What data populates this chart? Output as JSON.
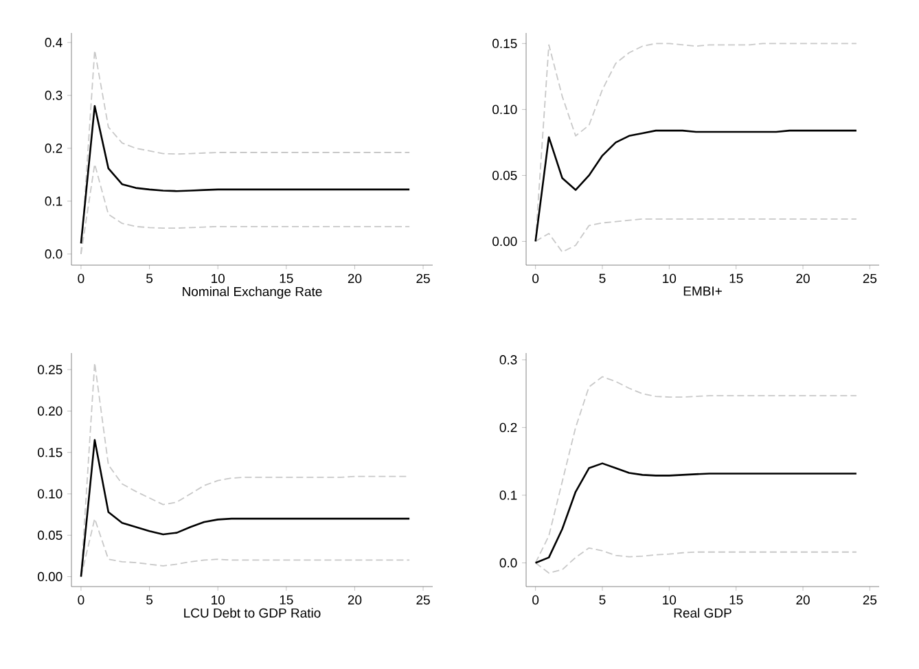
{
  "chart_data": [
    {
      "type": "line",
      "xlabel": "Nominal Exchange Rate",
      "x": [
        0,
        1,
        2,
        3,
        4,
        5,
        6,
        7,
        8,
        9,
        10,
        11,
        12,
        13,
        14,
        15,
        16,
        17,
        18,
        19,
        20,
        21,
        22,
        23,
        24
      ],
      "xlim": [
        -0.7,
        25.7
      ],
      "xticks": [
        0,
        5,
        10,
        15,
        20,
        25
      ],
      "ylim": [
        -0.021,
        0.418
      ],
      "yticks": [
        {
          "value": 0,
          "label": "0.0"
        },
        {
          "value": 0.1,
          "label": "0.1"
        },
        {
          "value": 0.2,
          "label": "0.2"
        },
        {
          "value": 0.3,
          "label": "0.3"
        },
        {
          "value": 0.4,
          "label": "0.4"
        }
      ],
      "marker": "none",
      "series": [
        {
          "color": "#c8c8c8",
          "line_style": "dashed",
          "values": [
            0,
            0.385,
            0.24,
            0.21,
            0.2,
            0.195,
            0.19,
            0.189,
            0.19,
            0.191,
            0.192,
            0.192,
            0.192,
            0.192,
            0.192,
            0.192,
            0.192,
            0.192,
            0.192,
            0.192,
            0.192,
            0.192,
            0.192,
            0.192,
            0.192
          ]
        },
        {
          "color": "#c8c8c8",
          "line_style": "dashed",
          "values": [
            0,
            0.17,
            0.075,
            0.058,
            0.052,
            0.05,
            0.049,
            0.049,
            0.05,
            0.051,
            0.052,
            0.052,
            0.052,
            0.052,
            0.052,
            0.052,
            0.052,
            0.052,
            0.052,
            0.052,
            0.052,
            0.052,
            0.052,
            0.052,
            0.052
          ]
        },
        {
          "color": "#000000",
          "line_style": "solid",
          "values": [
            0.02,
            0.28,
            0.162,
            0.132,
            0.125,
            0.122,
            0.12,
            0.119,
            0.12,
            0.121,
            0.122,
            0.122,
            0.122,
            0.122,
            0.122,
            0.122,
            0.122,
            0.122,
            0.122,
            0.122,
            0.122,
            0.122,
            0.122,
            0.122,
            0.122
          ]
        }
      ]
    },
    {
      "type": "line",
      "xlabel": "EMBI+",
      "x": [
        0,
        1,
        2,
        3,
        4,
        5,
        6,
        7,
        8,
        9,
        10,
        11,
        12,
        13,
        14,
        15,
        16,
        17,
        18,
        19,
        20,
        21,
        22,
        23,
        24
      ],
      "xlim": [
        -0.7,
        25.7
      ],
      "xticks": [
        0,
        5,
        10,
        15,
        20,
        25
      ],
      "ylim": [
        -0.018,
        0.158
      ],
      "yticks": [
        {
          "value": 0,
          "label": "0.00"
        },
        {
          "value": 0.05,
          "label": "0.05"
        },
        {
          "value": 0.1,
          "label": "0.10"
        },
        {
          "value": 0.15,
          "label": "0.15"
        }
      ],
      "marker": "none",
      "series": [
        {
          "color": "#c8c8c8",
          "line_style": "dashed",
          "values": [
            0,
            0.149,
            0.11,
            0.08,
            0.088,
            0.115,
            0.135,
            0.143,
            0.148,
            0.15,
            0.15,
            0.149,
            0.148,
            0.149,
            0.149,
            0.149,
            0.149,
            0.15,
            0.15,
            0.15,
            0.15,
            0.15,
            0.15,
            0.15,
            0.15
          ]
        },
        {
          "color": "#c8c8c8",
          "line_style": "dashed",
          "values": [
            0,
            0.006,
            -0.008,
            -0.003,
            0.012,
            0.014,
            0.015,
            0.016,
            0.017,
            0.017,
            0.017,
            0.017,
            0.017,
            0.017,
            0.017,
            0.017,
            0.017,
            0.017,
            0.017,
            0.017,
            0.017,
            0.017,
            0.017,
            0.017,
            0.017
          ]
        },
        {
          "color": "#000000",
          "line_style": "solid",
          "values": [
            0,
            0.079,
            0.048,
            0.039,
            0.05,
            0.065,
            0.075,
            0.08,
            0.082,
            0.084,
            0.084,
            0.084,
            0.083,
            0.083,
            0.083,
            0.083,
            0.083,
            0.083,
            0.083,
            0.084,
            0.084,
            0.084,
            0.084,
            0.084,
            0.084
          ]
        }
      ]
    },
    {
      "type": "line",
      "xlabel": "LCU Debt to GDP Ratio",
      "x": [
        0,
        1,
        2,
        3,
        4,
        5,
        6,
        7,
        8,
        9,
        10,
        11,
        12,
        13,
        14,
        15,
        16,
        17,
        18,
        19,
        20,
        21,
        22,
        23,
        24
      ],
      "xlim": [
        -0.7,
        25.7
      ],
      "xticks": [
        0,
        5,
        10,
        15,
        20,
        25
      ],
      "ylim": [
        -0.012,
        0.27
      ],
      "yticks": [
        {
          "value": 0,
          "label": "0.00"
        },
        {
          "value": 0.05,
          "label": "0.05"
        },
        {
          "value": 0.1,
          "label": "0.10"
        },
        {
          "value": 0.15,
          "label": "0.15"
        },
        {
          "value": 0.2,
          "label": "0.20"
        },
        {
          "value": 0.25,
          "label": "0.25"
        }
      ],
      "marker": "none",
      "series": [
        {
          "color": "#c8c8c8",
          "line_style": "dashed",
          "values": [
            0,
            0.258,
            0.135,
            0.112,
            0.103,
            0.095,
            0.087,
            0.09,
            0.1,
            0.11,
            0.116,
            0.119,
            0.12,
            0.12,
            0.12,
            0.12,
            0.12,
            0.12,
            0.12,
            0.12,
            0.121,
            0.121,
            0.121,
            0.121,
            0.121
          ]
        },
        {
          "color": "#c8c8c8",
          "line_style": "dashed",
          "values": [
            0,
            0.07,
            0.021,
            0.018,
            0.017,
            0.015,
            0.013,
            0.015,
            0.018,
            0.02,
            0.021,
            0.02,
            0.02,
            0.02,
            0.02,
            0.02,
            0.02,
            0.02,
            0.02,
            0.02,
            0.02,
            0.02,
            0.02,
            0.02,
            0.02
          ]
        },
        {
          "color": "#000000",
          "line_style": "solid",
          "values": [
            0,
            0.165,
            0.078,
            0.065,
            0.06,
            0.055,
            0.051,
            0.053,
            0.06,
            0.066,
            0.069,
            0.07,
            0.07,
            0.07,
            0.07,
            0.07,
            0.07,
            0.07,
            0.07,
            0.07,
            0.07,
            0.07,
            0.07,
            0.07,
            0.07
          ]
        }
      ]
    },
    {
      "type": "line",
      "xlabel": "Real GDP",
      "x": [
        0,
        1,
        2,
        3,
        4,
        5,
        6,
        7,
        8,
        9,
        10,
        11,
        12,
        13,
        14,
        15,
        16,
        17,
        18,
        19,
        20,
        21,
        22,
        23,
        24
      ],
      "xlim": [
        -0.7,
        25.7
      ],
      "xticks": [
        0,
        5,
        10,
        15,
        20,
        25
      ],
      "ylim": [
        -0.035,
        0.31
      ],
      "yticks": [
        {
          "value": 0,
          "label": "0.0"
        },
        {
          "value": 0.1,
          "label": "0.1"
        },
        {
          "value": 0.2,
          "label": "0.2"
        },
        {
          "value": 0.3,
          "label": "0.3"
        }
      ],
      "marker": "none",
      "series": [
        {
          "color": "#c8c8c8",
          "line_style": "dashed",
          "values": [
            0,
            0.04,
            0.12,
            0.2,
            0.26,
            0.275,
            0.268,
            0.258,
            0.25,
            0.246,
            0.245,
            0.245,
            0.246,
            0.247,
            0.247,
            0.247,
            0.247,
            0.247,
            0.247,
            0.247,
            0.247,
            0.247,
            0.247,
            0.247,
            0.247
          ]
        },
        {
          "color": "#c8c8c8",
          "line_style": "dashed",
          "values": [
            0,
            -0.015,
            -0.01,
            0.008,
            0.022,
            0.018,
            0.011,
            0.009,
            0.01,
            0.012,
            0.013,
            0.015,
            0.016,
            0.016,
            0.016,
            0.016,
            0.016,
            0.016,
            0.016,
            0.016,
            0.016,
            0.016,
            0.016,
            0.016,
            0.016
          ]
        },
        {
          "color": "#000000",
          "line_style": "solid",
          "values": [
            0,
            0.008,
            0.05,
            0.105,
            0.14,
            0.147,
            0.14,
            0.133,
            0.13,
            0.129,
            0.129,
            0.13,
            0.131,
            0.132,
            0.132,
            0.132,
            0.132,
            0.132,
            0.132,
            0.132,
            0.132,
            0.132,
            0.132,
            0.132,
            0.132
          ]
        }
      ]
    }
  ]
}
